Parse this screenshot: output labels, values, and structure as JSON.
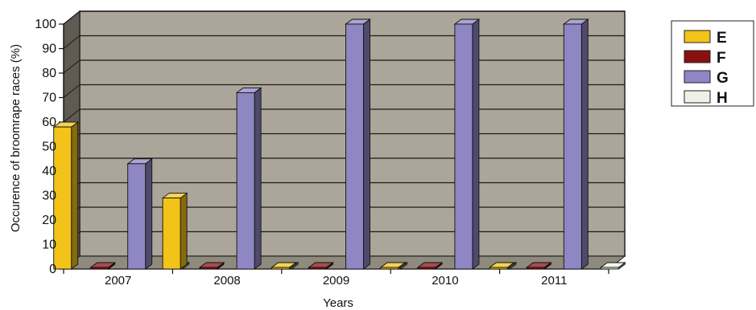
{
  "chart_data": {
    "type": "bar",
    "categories": [
      "2007",
      "2008",
      "2009",
      "2010",
      "2011"
    ],
    "series": [
      {
        "name": "E",
        "values": [
          58,
          29,
          0,
          0,
          0
        ]
      },
      {
        "name": "F",
        "values": [
          0,
          0,
          0,
          0,
          0
        ]
      },
      {
        "name": "G",
        "values": [
          43,
          72,
          100,
          100,
          100
        ]
      },
      {
        "name": "H",
        "values": [
          0,
          0,
          0,
          0,
          0
        ]
      }
    ],
    "xlabel": "Years",
    "ylabel": "Occurence of broomrape races (%)",
    "ylim": [
      0,
      100
    ],
    "yticks": [
      "0",
      "10",
      "20",
      "30",
      "40",
      "50",
      "60",
      "70",
      "80",
      "90",
      "100"
    ],
    "grid": true,
    "legend_position": "right",
    "three_d": true
  },
  "colors": {
    "E": "#f2c318",
    "F": "#8a0f0f",
    "G": "#8f86c4",
    "H": "#eef2e6",
    "plot_wall": "#aba699",
    "floor": "#8f8a7e"
  }
}
